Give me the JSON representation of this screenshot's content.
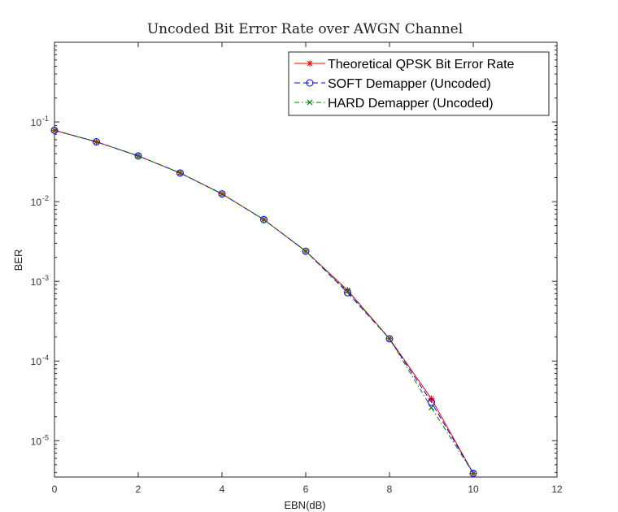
{
  "chart_data": {
    "type": "line",
    "title": "Uncoded Bit Error Rate over AWGN Channel",
    "xlabel": "EBN(dB)",
    "ylabel": "BER",
    "xlim": [
      0,
      12
    ],
    "ylim": [
      3.5e-06,
      1
    ],
    "yscale": "log",
    "grid": false,
    "legend_position": "top-right",
    "x_ticks": [
      "0",
      "2",
      "4",
      "6",
      "8",
      "10",
      "12"
    ],
    "y_ticks": [
      {
        "base": "10",
        "exp": "-1"
      },
      {
        "base": "10",
        "exp": "-2"
      },
      {
        "base": "10",
        "exp": "-3"
      },
      {
        "base": "10",
        "exp": "-4"
      },
      {
        "base": "10",
        "exp": "-5"
      }
    ],
    "series": [
      {
        "name": "Theoretical QPSK Bit Error Rate",
        "color": "#ff0000",
        "line_style": "solid",
        "marker": "asterisk",
        "x": [
          0,
          1,
          2,
          3,
          4,
          5,
          6,
          7,
          8,
          9,
          10
        ],
        "y": [
          0.0786,
          0.0563,
          0.0375,
          0.0229,
          0.0125,
          0.00595,
          0.00239,
          0.000773,
          0.000191,
          3.36e-05,
          3.9e-06
        ]
      },
      {
        "name": "SOFT Demapper (Uncoded)",
        "color": "#0000ff",
        "line_style": "dashed",
        "marker": "circle",
        "x": [
          0,
          1,
          2,
          3,
          4,
          5,
          6,
          7,
          8,
          9,
          10
        ],
        "y": [
          0.0786,
          0.0563,
          0.0375,
          0.0229,
          0.0125,
          0.00595,
          0.00239,
          0.00072,
          0.00019,
          3.05e-05,
          3.9e-06
        ]
      },
      {
        "name": "HARD Demapper (Uncoded)",
        "color": "#008000",
        "line_style": "dashdot",
        "marker": "x",
        "x": [
          0,
          1,
          2,
          3,
          4,
          5,
          6,
          7,
          8,
          9,
          10
        ],
        "y": [
          0.0786,
          0.0563,
          0.0375,
          0.0229,
          0.0125,
          0.00595,
          0.00239,
          0.00075,
          0.00019,
          2.6e-05,
          3.9e-06
        ]
      }
    ]
  }
}
